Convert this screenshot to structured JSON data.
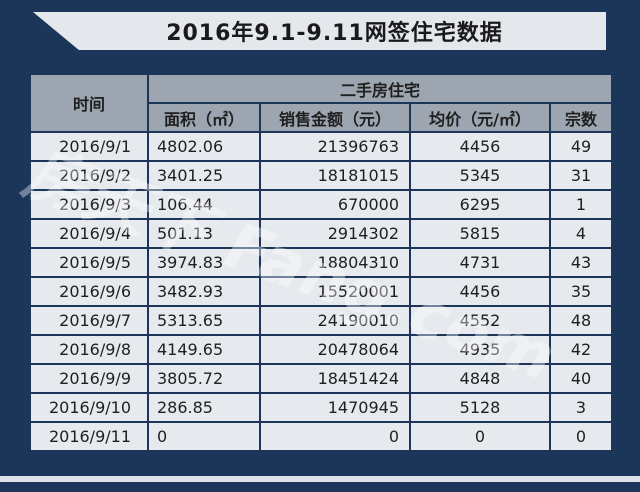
{
  "title": "2016年9.1-9.11网签住宅数据",
  "table": {
    "time_header": "时间",
    "group_header": "二手房住宅",
    "columns": [
      "面积（㎡）",
      "销售金额（元）",
      "均价（元/㎡）",
      "宗数"
    ],
    "rows": [
      {
        "date": "2016/9/1",
        "area": "4802.06",
        "amount": "21396763",
        "avg": "4456",
        "count": "49"
      },
      {
        "date": "2016/9/2",
        "area": "3401.25",
        "amount": "18181015",
        "avg": "5345",
        "count": "31"
      },
      {
        "date": "2016/9/3",
        "area": "106.44",
        "amount": "670000",
        "avg": "6295",
        "count": "1"
      },
      {
        "date": "2016/9/4",
        "area": "501.13",
        "amount": "2914302",
        "avg": "5815",
        "count": "4"
      },
      {
        "date": "2016/9/5",
        "area": "3974.83",
        "amount": "18804310",
        "avg": "4731",
        "count": "43"
      },
      {
        "date": "2016/9/6",
        "area": "3482.93",
        "amount": "15520001",
        "avg": "4456",
        "count": "35"
      },
      {
        "date": "2016/9/7",
        "area": "5313.65",
        "amount": "24190010",
        "avg": "4552",
        "count": "48"
      },
      {
        "date": "2016/9/8",
        "area": "4149.65",
        "amount": "20478064",
        "avg": "4935",
        "count": "42"
      },
      {
        "date": "2016/9/9",
        "area": "3805.72",
        "amount": "18451424",
        "avg": "4848",
        "count": "40"
      },
      {
        "date": "2016/9/10",
        "area": "286.85",
        "amount": "1470945",
        "avg": "5128",
        "count": "3"
      },
      {
        "date": "2016/9/11",
        "area": "0",
        "amount": "0",
        "avg": "0",
        "count": "0"
      }
    ]
  },
  "watermark": {
    "text": "房天下 Fang.com"
  }
}
